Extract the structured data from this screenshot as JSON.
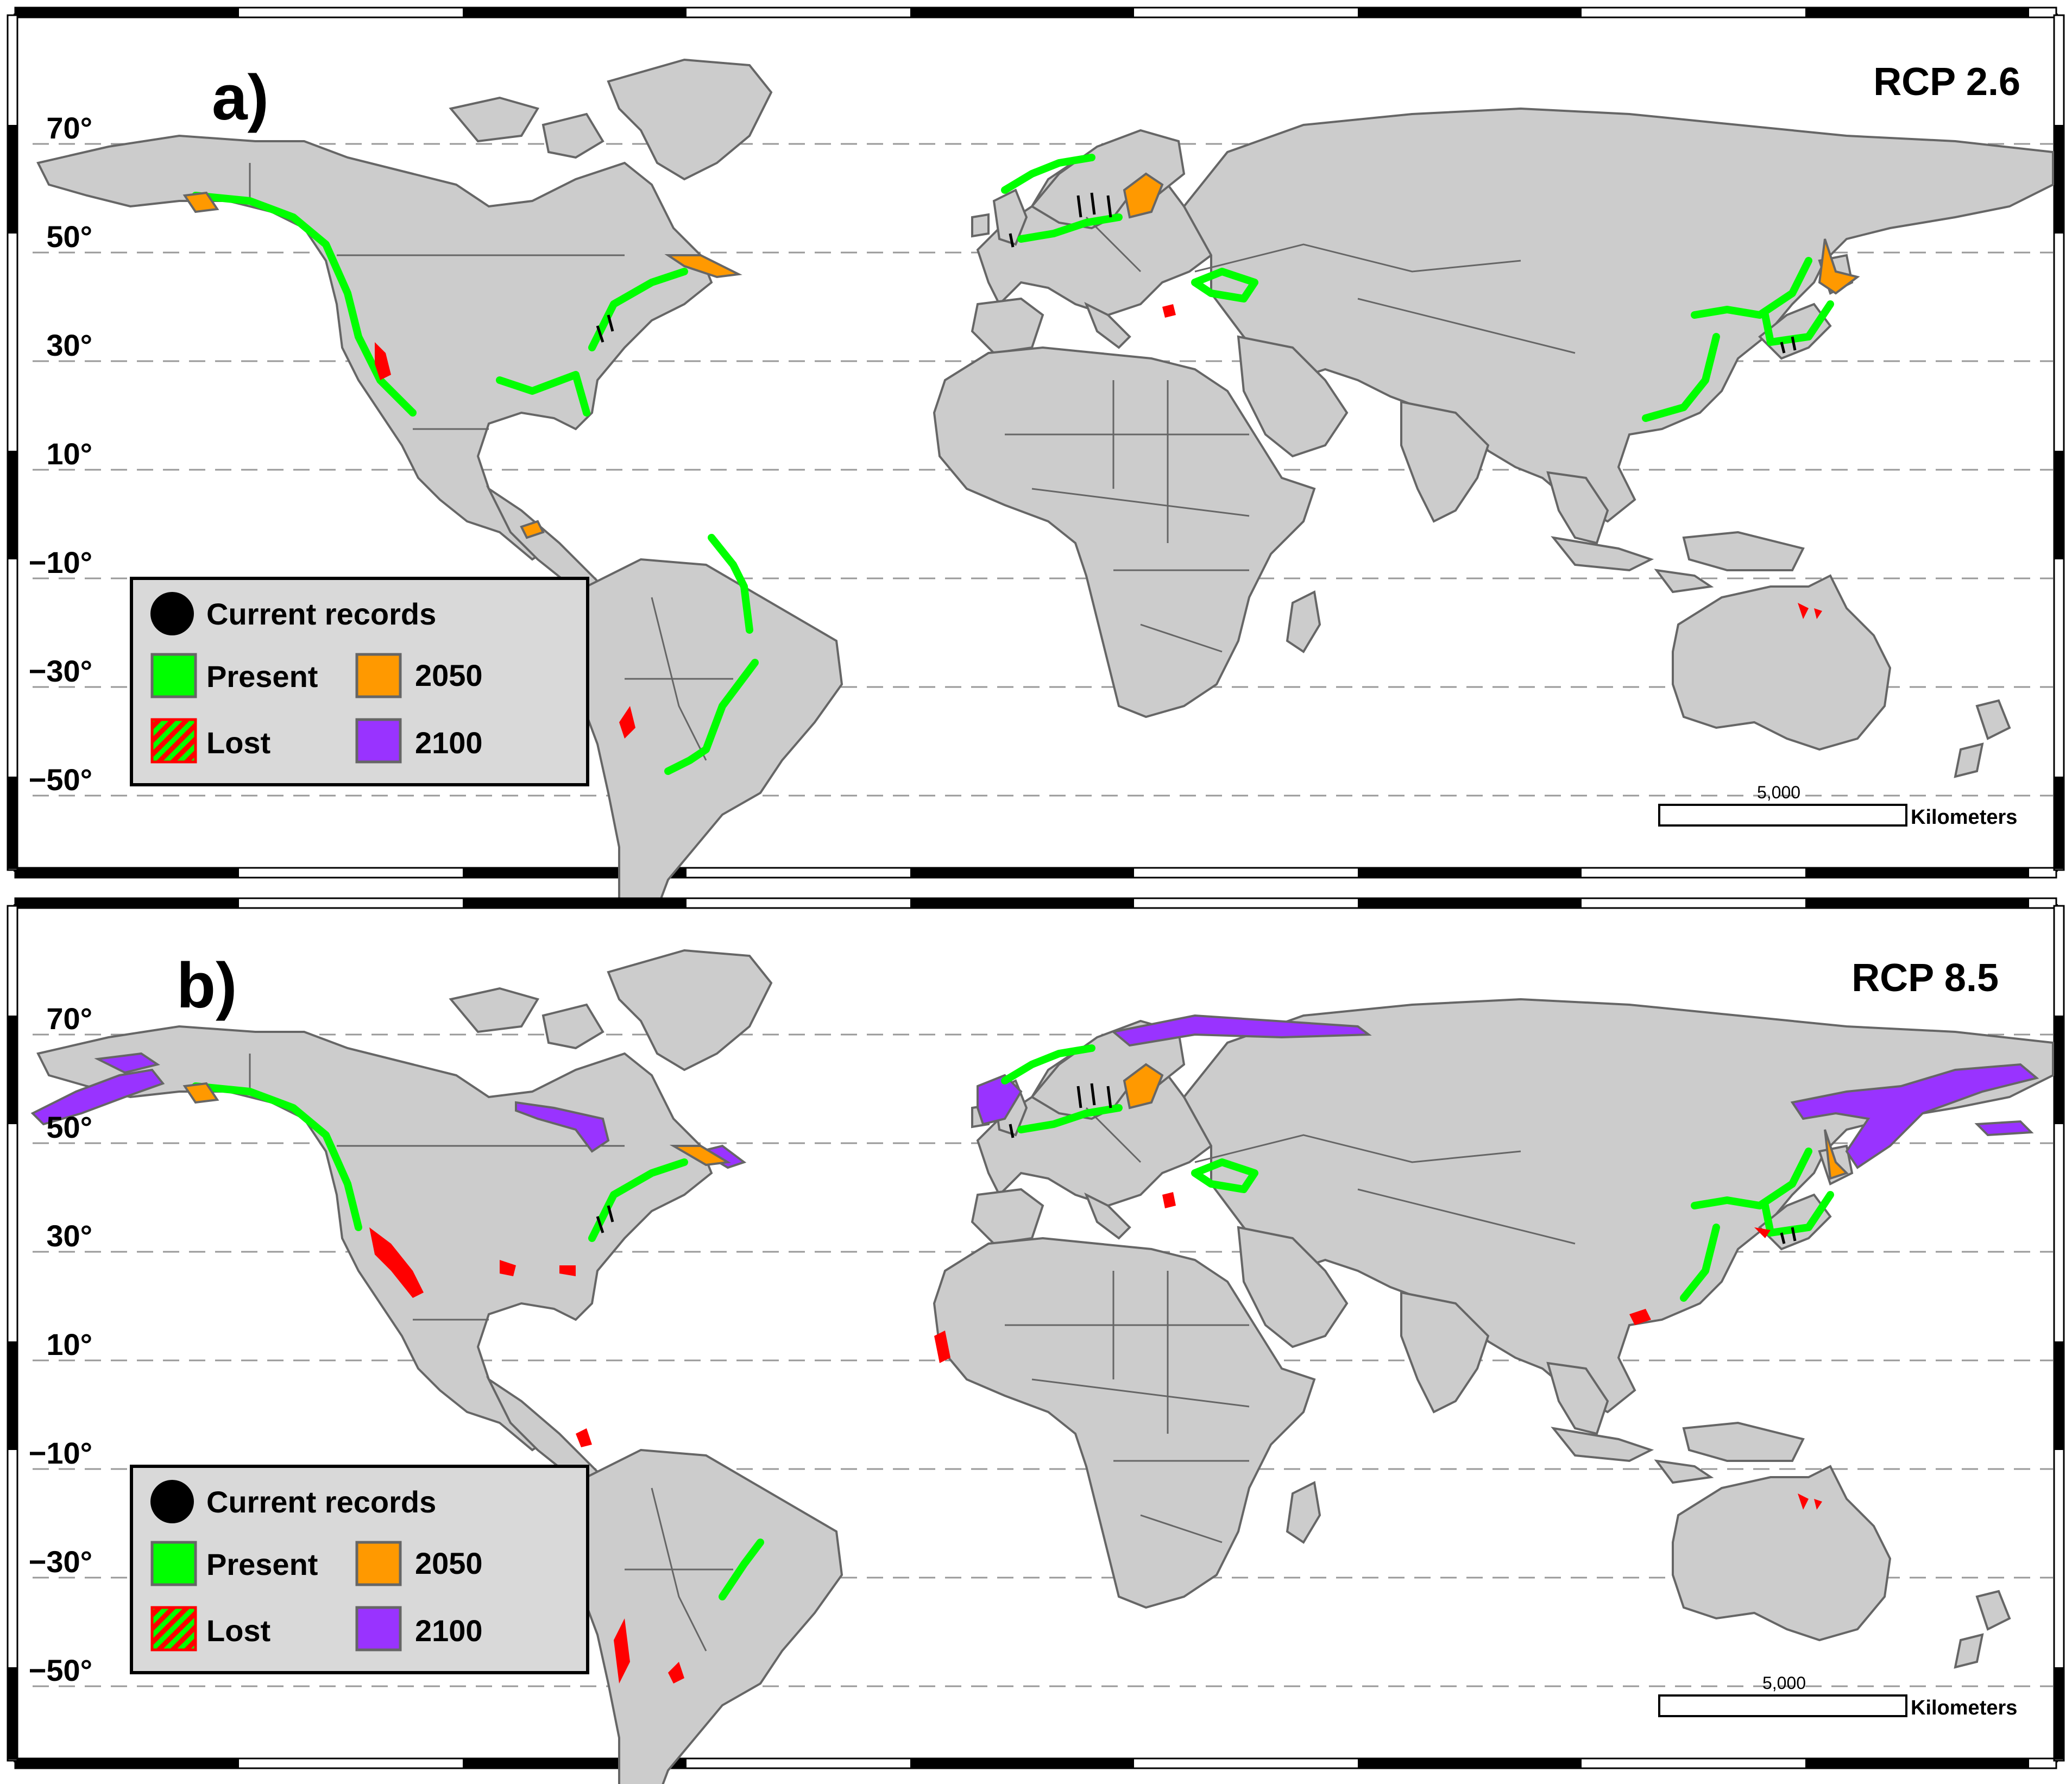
{
  "colors": {
    "land": "#cccccc",
    "land_stroke": "#666666",
    "ocean": "#ffffff",
    "present": "#00ff00",
    "lost": "#ff0000",
    "y2050": "#ff9900",
    "y2100": "#9933ff",
    "records": "#000000",
    "legend_bg": "#d9d9d9"
  },
  "latitude_labels": [
    "70°",
    "50°",
    "30°",
    "10°",
    "−10°",
    "−30°",
    "−50°"
  ],
  "legend": {
    "current_records": "Current records",
    "present": "Present",
    "lost": "Lost",
    "y2050": "2050",
    "y2100": "2100"
  },
  "scale_bar": {
    "value": "5,000",
    "unit": "Kilometers"
  },
  "panels": [
    {
      "letter": "a)",
      "scenario": "RCP 2.6"
    },
    {
      "letter": "b)",
      "scenario": "RCP 8.5"
    }
  ]
}
